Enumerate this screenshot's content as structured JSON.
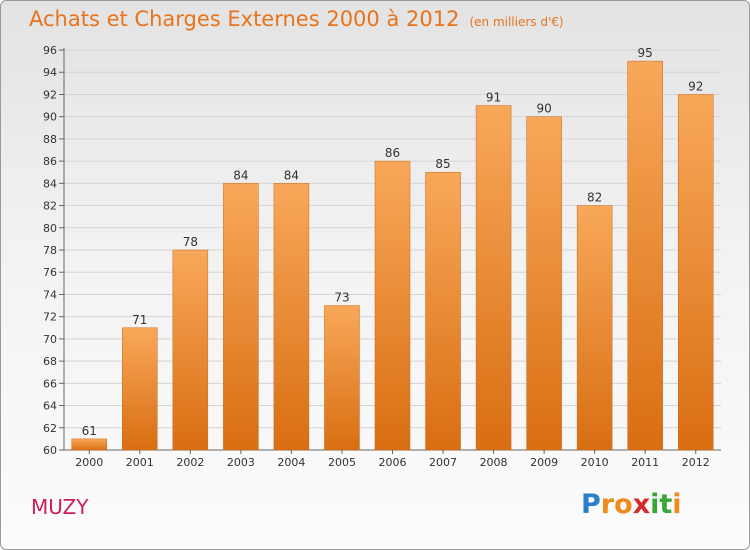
{
  "title": "Achats et Charges Externes 2000 à 2012",
  "subtitle": "(en milliers d'€)",
  "town": "MUZY",
  "logo": {
    "letters": [
      "P",
      "r",
      "o",
      "x",
      "i",
      "t",
      "i"
    ],
    "colors": [
      "#2a7fc9",
      "#f08a1c",
      "#f08a1c",
      "#d42a2a",
      "#3aa63a",
      "#3aa63a",
      "#f08a1c"
    ]
  },
  "colors": {
    "title": "#e8731c",
    "bar_top": "#f8a85a",
    "bar_bottom": "#d96e12",
    "town": "#cc1f5c"
  },
  "chart_data": {
    "type": "bar",
    "title": "Achats et Charges Externes 2000 à 2012",
    "subtitle": "(en milliers d'€)",
    "categories": [
      "2000",
      "2001",
      "2002",
      "2003",
      "2004",
      "2005",
      "2006",
      "2007",
      "2008",
      "2009",
      "2010",
      "2011",
      "2012"
    ],
    "values": [
      61,
      71,
      78,
      84,
      84,
      73,
      86,
      85,
      91,
      90,
      82,
      95,
      92
    ],
    "ylim": [
      60,
      96
    ],
    "yticks": [
      60,
      62,
      64,
      66,
      68,
      70,
      72,
      74,
      76,
      78,
      80,
      82,
      84,
      86,
      88,
      90,
      92,
      94,
      96
    ],
    "grid": true,
    "xlabel": "",
    "ylabel": ""
  }
}
